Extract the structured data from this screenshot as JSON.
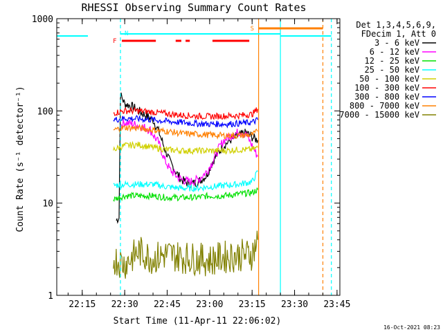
{
  "chart_data": {
    "type": "line",
    "title": "RHESSI Observing Summary Count Rates",
    "xlabel": "Start Time (11-Apr-11 22:06:02)",
    "ylabel": "Count Rate (s⁻¹ detector⁻¹)",
    "yscale": "log",
    "ylim": [
      1,
      1000
    ],
    "xlim": [
      "22:06",
      "23:46"
    ],
    "x_ticks": [
      "22:15",
      "22:30",
      "22:45",
      "23:00",
      "23:15",
      "23:30",
      "23:45"
    ],
    "y_ticks": [
      "1",
      "10",
      "100",
      "1000"
    ],
    "footer": "16-Oct-2021 08:23",
    "legend_header": [
      "Det 1,3,4,5,6,9,",
      "FDecim 1, Att 0"
    ],
    "series": [
      {
        "name": "3 - 6 keV",
        "color": "#000000",
        "points": [
          [
            "22:27",
            6.5
          ],
          [
            "22:28",
            7
          ],
          [
            "22:28.5",
            150
          ],
          [
            "22:30",
            120
          ],
          [
            "22:33",
            110
          ],
          [
            "22:36",
            95
          ],
          [
            "22:40",
            80
          ],
          [
            "22:42",
            60
          ],
          [
            "22:44",
            40
          ],
          [
            "22:46",
            28
          ],
          [
            "22:48",
            22
          ],
          [
            "22:50",
            18
          ],
          [
            "22:53",
            16
          ],
          [
            "22:56",
            17
          ],
          [
            "22:59",
            20
          ],
          [
            "23:01",
            28
          ],
          [
            "23:03",
            35
          ],
          [
            "23:05",
            42
          ],
          [
            "23:08",
            50
          ],
          [
            "23:11",
            55
          ],
          [
            "23:13",
            58
          ],
          [
            "23:15",
            52
          ],
          [
            "23:17",
            48
          ]
        ]
      },
      {
        "name": "6 - 12 keV",
        "color": "#ff00ff",
        "points": [
          [
            "22:28.5",
            70
          ],
          [
            "22:30",
            75
          ],
          [
            "22:33",
            72
          ],
          [
            "22:36",
            68
          ],
          [
            "22:39",
            62
          ],
          [
            "22:42",
            45
          ],
          [
            "22:44",
            30
          ],
          [
            "22:46",
            23
          ],
          [
            "22:48",
            20
          ],
          [
            "22:50",
            18
          ],
          [
            "22:53",
            17
          ],
          [
            "22:56",
            18
          ],
          [
            "22:59",
            22
          ],
          [
            "23:01",
            28
          ],
          [
            "23:03",
            38
          ],
          [
            "23:05",
            48
          ],
          [
            "23:08",
            55
          ],
          [
            "23:11",
            60
          ],
          [
            "23:13",
            55
          ],
          [
            "23:15",
            42
          ],
          [
            "23:17",
            32
          ]
        ]
      },
      {
        "name": "12 - 25 keV",
        "color": "#00e000",
        "points": [
          [
            "22:26",
            11
          ],
          [
            "22:30",
            12
          ],
          [
            "22:35",
            12
          ],
          [
            "22:40",
            12
          ],
          [
            "22:45",
            11.5
          ],
          [
            "22:50",
            11.5
          ],
          [
            "22:55",
            11.5
          ],
          [
            "23:00",
            12
          ],
          [
            "23:05",
            12
          ],
          [
            "23:10",
            12.5
          ],
          [
            "23:15",
            13
          ],
          [
            "23:17",
            14
          ]
        ]
      },
      {
        "name": "25 - 50 keV",
        "color": "#00ffff",
        "points": [
          [
            "22:26",
            15.5
          ],
          [
            "22:30",
            16
          ],
          [
            "22:35",
            16
          ],
          [
            "22:40",
            16
          ],
          [
            "22:45",
            15
          ],
          [
            "22:50",
            14.5
          ],
          [
            "22:55",
            14.5
          ],
          [
            "23:00",
            15
          ],
          [
            "23:05",
            15.5
          ],
          [
            "23:10",
            16
          ],
          [
            "23:15",
            17
          ],
          [
            "23:17",
            22
          ]
        ]
      },
      {
        "name": "50 - 100 keV",
        "color": "#d0d000",
        "points": [
          [
            "22:26",
            38
          ],
          [
            "22:30",
            42
          ],
          [
            "22:35",
            43
          ],
          [
            "22:40",
            40
          ],
          [
            "22:45",
            38
          ],
          [
            "22:50",
            37
          ],
          [
            "22:55",
            37
          ],
          [
            "23:00",
            37
          ],
          [
            "23:05",
            37
          ],
          [
            "23:10",
            38
          ],
          [
            "23:15",
            38
          ],
          [
            "23:17",
            40
          ]
        ]
      },
      {
        "name": "100 - 300 keV",
        "color": "#ff0000",
        "points": [
          [
            "22:26",
            95
          ],
          [
            "22:30",
            100
          ],
          [
            "22:35",
            100
          ],
          [
            "22:40",
            97
          ],
          [
            "22:45",
            93
          ],
          [
            "22:50",
            90
          ],
          [
            "22:55",
            88
          ],
          [
            "23:00",
            87
          ],
          [
            "23:05",
            88
          ],
          [
            "23:10",
            89
          ],
          [
            "23:15",
            92
          ],
          [
            "23:17",
            105
          ]
        ]
      },
      {
        "name": "300 - 800 keV",
        "color": "#0000ff",
        "points": [
          [
            "22:26",
            80
          ],
          [
            "22:30",
            83
          ],
          [
            "22:35",
            82
          ],
          [
            "22:40",
            80
          ],
          [
            "22:45",
            77
          ],
          [
            "22:50",
            75
          ],
          [
            "22:55",
            73
          ],
          [
            "23:00",
            72
          ],
          [
            "23:05",
            72
          ],
          [
            "23:10",
            73
          ],
          [
            "23:15",
            75
          ],
          [
            "23:17",
            80
          ]
        ]
      },
      {
        "name": "800 - 7000 keV",
        "color": "#ff8000",
        "points": [
          [
            "22:26",
            62
          ],
          [
            "22:30",
            66
          ],
          [
            "22:35",
            65
          ],
          [
            "22:40",
            62
          ],
          [
            "22:45",
            60
          ],
          [
            "22:50",
            57
          ],
          [
            "22:55",
            56
          ],
          [
            "23:00",
            55
          ],
          [
            "23:05",
            54
          ],
          [
            "23:10",
            54
          ],
          [
            "23:15",
            55
          ],
          [
            "23:17",
            60
          ]
        ]
      },
      {
        "name": "7000 - 15000 keV",
        "color": "#808000",
        "points": [
          [
            "22:26",
            2.5
          ],
          [
            "22:30",
            2.2
          ],
          [
            "22:35",
            3
          ],
          [
            "22:40",
            2.5
          ],
          [
            "22:45",
            2.8
          ],
          [
            "22:50",
            2.6
          ],
          [
            "22:55",
            2.5
          ],
          [
            "23:00",
            2.4
          ],
          [
            "23:05",
            2.6
          ],
          [
            "23:10",
            2.7
          ],
          [
            "23:15",
            2.8
          ],
          [
            "23:17",
            4
          ]
        ]
      }
    ],
    "annotations": {
      "flags": [
        {
          "label": "N",
          "start": "22:28.5",
          "end": "23:25",
          "color": "#00ffff"
        },
        {
          "label": "S",
          "start": "23:17.3",
          "end": "23:40",
          "color": "#ff8000"
        },
        {
          "label": "F",
          "color": "#ff0000",
          "intervals": [
            [
              "22:29",
              "22:41"
            ],
            [
              "22:48",
              "22:50"
            ],
            [
              "22:51.5",
              "22:53"
            ],
            [
              "23:01",
              "23:14"
            ]
          ]
        }
      ],
      "vertical_lines": [
        {
          "time": "22:28.5",
          "style": "dashed",
          "color": "#00ffff"
        },
        {
          "time": "23:25",
          "style": "solid",
          "color": "#00ffff"
        },
        {
          "time": "23:43",
          "style": "dashed",
          "color": "#00ffff"
        },
        {
          "time": "23:17.3",
          "style": "solid",
          "color": "#ff8000"
        },
        {
          "time": "23:40",
          "style": "dashed",
          "color": "#ff8000"
        }
      ],
      "cyan_bars": [
        {
          "start": "22:06",
          "end": "22:17",
          "level": 650
        },
        {
          "start": "23:25",
          "end": "23:43",
          "level": 650
        }
      ]
    }
  }
}
